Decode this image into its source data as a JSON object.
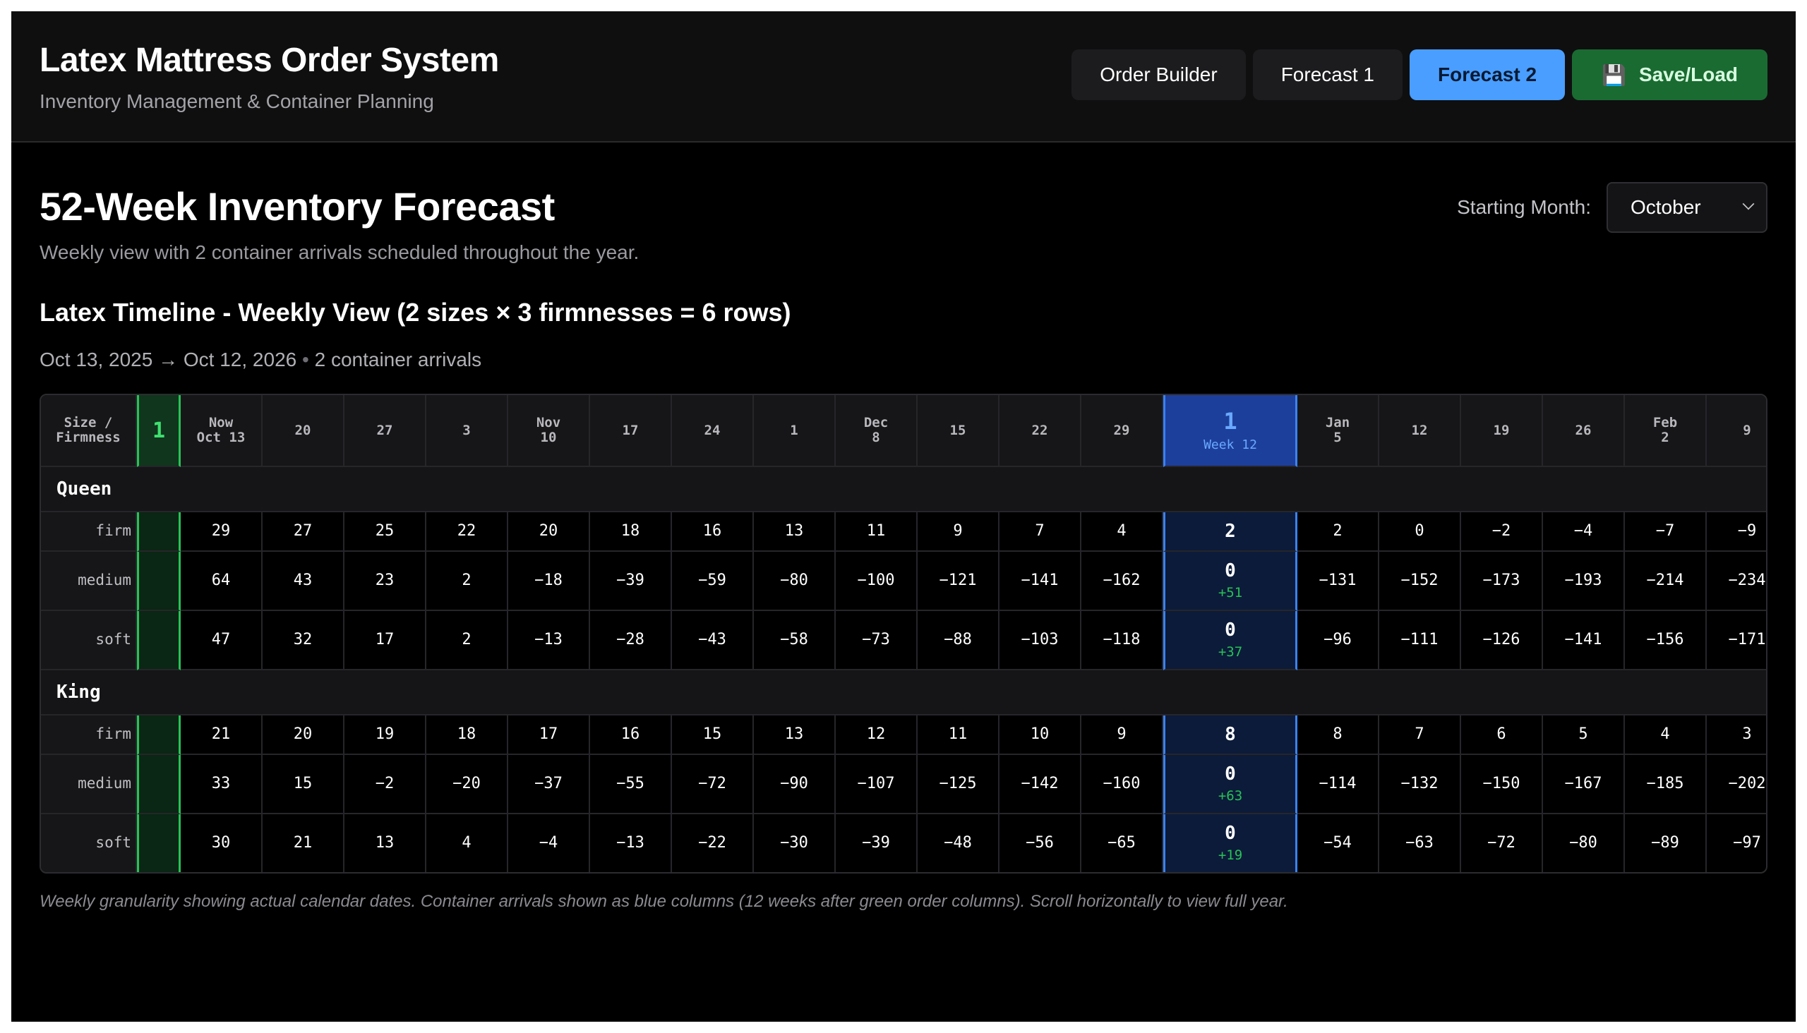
{
  "app": {
    "title": "Latex Mattress Order System",
    "subtitle": "Inventory Management & Container Planning"
  },
  "nav": {
    "items": [
      {
        "label": "Order Builder",
        "active": false
      },
      {
        "label": "Forecast 1",
        "active": false
      },
      {
        "label": "Forecast 2",
        "active": true
      }
    ],
    "save_label": "Save/Load",
    "save_icon": "floppy-disk-icon"
  },
  "page": {
    "title": "52-Week Inventory Forecast",
    "subtitle": "Weekly view with 2 container arrivals scheduled throughout the year.",
    "starting_month_label": "Starting Month:",
    "starting_month_value": "October"
  },
  "timeline": {
    "title": "Latex Timeline - Weekly View (2 sizes × 3 firmnesses = 6 rows)",
    "range_text": "Oct 13, 2025 → Oct 12, 2026",
    "arrivals_text": "2 container arrivals",
    "corner_label": [
      "Size /",
      "Firmness"
    ],
    "columns": [
      {
        "kind": "order",
        "lines": [
          "1"
        ]
      },
      {
        "kind": "week",
        "lines": [
          "Now",
          "Oct 13"
        ]
      },
      {
        "kind": "week",
        "lines": [
          "20"
        ]
      },
      {
        "kind": "week",
        "lines": [
          "27"
        ]
      },
      {
        "kind": "week",
        "lines": [
          "3"
        ]
      },
      {
        "kind": "week",
        "lines": [
          "Nov",
          "10"
        ]
      },
      {
        "kind": "week",
        "lines": [
          "17"
        ]
      },
      {
        "kind": "week",
        "lines": [
          "24"
        ]
      },
      {
        "kind": "week",
        "lines": [
          "1"
        ]
      },
      {
        "kind": "week",
        "lines": [
          "Dec",
          "8"
        ]
      },
      {
        "kind": "week",
        "lines": [
          "15"
        ]
      },
      {
        "kind": "week",
        "lines": [
          "22"
        ]
      },
      {
        "kind": "week",
        "lines": [
          "29"
        ]
      },
      {
        "kind": "arrival",
        "lines": [
          "1",
          "Week 12"
        ]
      },
      {
        "kind": "week",
        "lines": [
          "Jan",
          "5"
        ]
      },
      {
        "kind": "week",
        "lines": [
          "12"
        ]
      },
      {
        "kind": "week",
        "lines": [
          "19"
        ]
      },
      {
        "kind": "week",
        "lines": [
          "26"
        ]
      },
      {
        "kind": "week",
        "lines": [
          "Feb",
          "2"
        ]
      },
      {
        "kind": "week",
        "lines": [
          "9"
        ]
      }
    ],
    "groups": [
      {
        "name": "Queen",
        "rows": [
          {
            "label": "firm",
            "values": [
              "29",
              "27",
              "25",
              "22",
              "20",
              "18",
              "16",
              "13",
              "11",
              "9",
              "7",
              "4",
              "2",
              "2",
              "0",
              "−2",
              "−4",
              "−7",
              "−9"
            ],
            "arrival_delta": ""
          },
          {
            "label": "medium",
            "values": [
              "64",
              "43",
              "23",
              "2",
              "−18",
              "−39",
              "−59",
              "−80",
              "−100",
              "−121",
              "−141",
              "−162",
              "0",
              "−131",
              "−152",
              "−173",
              "−193",
              "−214",
              "−234"
            ],
            "arrival_delta": "+51"
          },
          {
            "label": "soft",
            "values": [
              "47",
              "32",
              "17",
              "2",
              "−13",
              "−28",
              "−43",
              "−58",
              "−73",
              "−88",
              "−103",
              "−118",
              "0",
              "−96",
              "−111",
              "−126",
              "−141",
              "−156",
              "−171"
            ],
            "arrival_delta": "+37"
          }
        ]
      },
      {
        "name": "King",
        "rows": [
          {
            "label": "firm",
            "values": [
              "21",
              "20",
              "19",
              "18",
              "17",
              "16",
              "15",
              "13",
              "12",
              "11",
              "10",
              "9",
              "8",
              "8",
              "7",
              "6",
              "5",
              "4",
              "3"
            ],
            "arrival_delta": ""
          },
          {
            "label": "medium",
            "values": [
              "33",
              "15",
              "−2",
              "−20",
              "−37",
              "−55",
              "−72",
              "−90",
              "−107",
              "−125",
              "−142",
              "−160",
              "0",
              "−114",
              "−132",
              "−150",
              "−167",
              "−185",
              "−202"
            ],
            "arrival_delta": "+63"
          },
          {
            "label": "soft",
            "values": [
              "30",
              "21",
              "13",
              "4",
              "−4",
              "−13",
              "−22",
              "−30",
              "−39",
              "−48",
              "−56",
              "−65",
              "0",
              "−54",
              "−63",
              "−72",
              "−80",
              "−89",
              "−97"
            ],
            "arrival_delta": "+19"
          }
        ]
      }
    ],
    "footnote": "Weekly granularity showing actual calendar dates. Container arrivals shown as blue columns (12 weeks after green order columns). Scroll horizontally to view full year."
  },
  "colors": {
    "order_column": "#27c256",
    "arrival_column": "#3b82f6",
    "active_tab": "#4a9eff",
    "save_button": "#1a6b32"
  }
}
